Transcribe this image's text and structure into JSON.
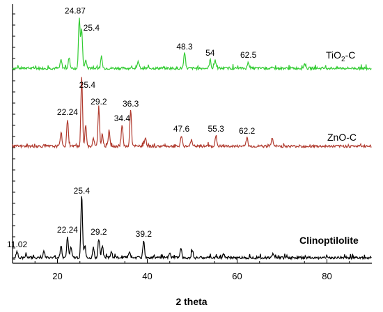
{
  "chart_data": {
    "type": "line",
    "xlabel": "2 theta",
    "ylabel": "",
    "xlim": [
      10,
      90
    ],
    "x_ticks": [
      20,
      40,
      60,
      80
    ],
    "grid": false,
    "legend": "none",
    "series": [
      {
        "name": "TiO2-C",
        "label_text": "TiO",
        "label_sub": "2",
        "label_suffix": "-C",
        "color": "#33cc33",
        "baseline": 0.0,
        "peaks": [
          {
            "x": 20.8,
            "h": 0.04
          },
          {
            "x": 22.6,
            "h": 0.05
          },
          {
            "x": 24.87,
            "h": 0.24
          },
          {
            "x": 25.4,
            "h": 0.19
          },
          {
            "x": 26.3,
            "h": 0.04
          },
          {
            "x": 29.8,
            "h": 0.05
          },
          {
            "x": 38.0,
            "h": 0.03
          },
          {
            "x": 48.3,
            "h": 0.07
          },
          {
            "x": 54.0,
            "h": 0.04
          },
          {
            "x": 55.1,
            "h": 0.04
          },
          {
            "x": 62.5,
            "h": 0.03
          },
          {
            "x": 75.0,
            "h": 0.02
          }
        ],
        "annotations": [
          {
            "x": 24.87,
            "text": "24.87"
          },
          {
            "x": 25.4,
            "text": "25.4"
          },
          {
            "x": 48.3,
            "text": "48.3"
          },
          {
            "x": 54.0,
            "text": "54"
          },
          {
            "x": 62.5,
            "text": "62.5"
          }
        ]
      },
      {
        "name": "ZnO-C",
        "label_text": "ZnO-C",
        "color": "#b03a2e",
        "baseline": 0.0,
        "peaks": [
          {
            "x": 20.8,
            "h": 0.07
          },
          {
            "x": 22.24,
            "h": 0.13
          },
          {
            "x": 25.4,
            "h": 0.34
          },
          {
            "x": 26.3,
            "h": 0.1
          },
          {
            "x": 28.0,
            "h": 0.04
          },
          {
            "x": 29.2,
            "h": 0.18
          },
          {
            "x": 30.0,
            "h": 0.06
          },
          {
            "x": 31.5,
            "h": 0.08
          },
          {
            "x": 34.4,
            "h": 0.1
          },
          {
            "x": 36.3,
            "h": 0.17
          },
          {
            "x": 39.6,
            "h": 0.04
          },
          {
            "x": 47.6,
            "h": 0.05
          },
          {
            "x": 49.8,
            "h": 0.03
          },
          {
            "x": 55.3,
            "h": 0.05
          },
          {
            "x": 62.2,
            "h": 0.04
          },
          {
            "x": 67.8,
            "h": 0.04
          }
        ],
        "annotations": [
          {
            "x": 22.24,
            "text": "22.24"
          },
          {
            "x": 25.4,
            "text": "25.4"
          },
          {
            "x": 29.2,
            "text": "29.2"
          },
          {
            "x": 34.4,
            "text": "34.4"
          },
          {
            "x": 36.3,
            "text": "36.3"
          },
          {
            "x": 47.6,
            "text": "47.6"
          },
          {
            "x": 55.3,
            "text": "55.3"
          },
          {
            "x": 62.2,
            "text": "62.2"
          }
        ]
      },
      {
        "name": "Clinoptilolite",
        "label_text": "Clinoptilolite",
        "color": "#000000",
        "baseline": 0.0,
        "peaks": [
          {
            "x": 11.02,
            "h": 0.03
          },
          {
            "x": 13.0,
            "h": 0.02
          },
          {
            "x": 17.0,
            "h": 0.03
          },
          {
            "x": 20.8,
            "h": 0.06
          },
          {
            "x": 22.24,
            "h": 0.1
          },
          {
            "x": 23.0,
            "h": 0.05
          },
          {
            "x": 25.4,
            "h": 0.3
          },
          {
            "x": 26.1,
            "h": 0.06
          },
          {
            "x": 28.0,
            "h": 0.05
          },
          {
            "x": 29.2,
            "h": 0.09
          },
          {
            "x": 30.0,
            "h": 0.06
          },
          {
            "x": 32.0,
            "h": 0.03
          },
          {
            "x": 36.0,
            "h": 0.03
          },
          {
            "x": 39.2,
            "h": 0.08
          },
          {
            "x": 45.0,
            "h": 0.02
          },
          {
            "x": 47.5,
            "h": 0.05
          },
          {
            "x": 50.0,
            "h": 0.03
          },
          {
            "x": 57.0,
            "h": 0.02
          },
          {
            "x": 68.0,
            "h": 0.02
          }
        ],
        "annotations": [
          {
            "x": 11.02,
            "text": "11.02"
          },
          {
            "x": 22.24,
            "text": "22.24"
          },
          {
            "x": 25.4,
            "text": "25.4"
          },
          {
            "x": 29.2,
            "text": "29.2"
          },
          {
            "x": 39.2,
            "text": "39.2"
          }
        ]
      }
    ]
  }
}
